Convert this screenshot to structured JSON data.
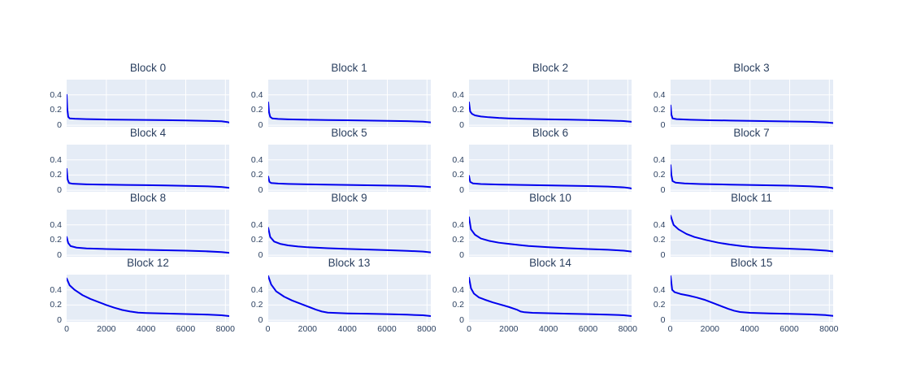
{
  "layout": {
    "figure_bg": "#ffffff",
    "plot_bg": "#e5ecf6",
    "grid_color": "#ffffff",
    "title_color": "#2a3f5f",
    "tick_color": "#2a3f5f",
    "line_color": "#0000ee",
    "xlim": [
      0,
      8192
    ],
    "ylim": [
      -0.02,
      0.6
    ],
    "xticks": [
      0,
      2000,
      4000,
      6000,
      8000
    ],
    "xtick_labels": [
      "0",
      "2000",
      "4000",
      "6000",
      "8000"
    ],
    "yticks": [
      0,
      0.2,
      0.4
    ],
    "ytick_labels": [
      "0",
      "0.2",
      "0.4"
    ],
    "grid_xticks": [
      2000,
      4000,
      6000,
      8000
    ],
    "rows": 4,
    "cols": 4
  },
  "chart_data": [
    {
      "type": "line",
      "title": "Block 0",
      "x": [
        0,
        30,
        80,
        150,
        400,
        1000,
        2000,
        3000,
        4000,
        5000,
        6000,
        7000,
        7800,
        8100,
        8192
      ],
      "y": [
        0.4,
        0.22,
        0.11,
        0.09,
        0.085,
        0.08,
        0.075,
        0.072,
        0.07,
        0.067,
        0.063,
        0.058,
        0.052,
        0.042,
        0.035
      ]
    },
    {
      "type": "line",
      "title": "Block 1",
      "x": [
        0,
        40,
        100,
        200,
        500,
        1000,
        2000,
        3000,
        4000,
        5000,
        6000,
        7000,
        7800,
        8192
      ],
      "y": [
        0.3,
        0.17,
        0.11,
        0.09,
        0.083,
        0.078,
        0.072,
        0.068,
        0.065,
        0.062,
        0.058,
        0.053,
        0.047,
        0.038
      ]
    },
    {
      "type": "line",
      "title": "Block 2",
      "x": [
        0,
        60,
        150,
        300,
        600,
        1000,
        1500,
        2000,
        3000,
        4000,
        5000,
        6000,
        7000,
        7800,
        8192
      ],
      "y": [
        0.3,
        0.18,
        0.15,
        0.13,
        0.115,
        0.105,
        0.096,
        0.09,
        0.083,
        0.078,
        0.073,
        0.068,
        0.062,
        0.055,
        0.045
      ]
    },
    {
      "type": "line",
      "title": "Block 3",
      "x": [
        0,
        40,
        100,
        300,
        1000,
        2000,
        3000,
        4000,
        5000,
        6000,
        7000,
        7800,
        8192
      ],
      "y": [
        0.26,
        0.14,
        0.09,
        0.08,
        0.072,
        0.066,
        0.062,
        0.058,
        0.054,
        0.05,
        0.045,
        0.038,
        0.03
      ]
    },
    {
      "type": "line",
      "title": "Block 4",
      "x": [
        0,
        50,
        120,
        300,
        1000,
        2000,
        3000,
        4000,
        5000,
        6000,
        7000,
        7800,
        8192
      ],
      "y": [
        0.28,
        0.14,
        0.095,
        0.085,
        0.078,
        0.073,
        0.07,
        0.067,
        0.063,
        0.058,
        0.052,
        0.043,
        0.032
      ]
    },
    {
      "type": "line",
      "title": "Block 5",
      "x": [
        0,
        60,
        150,
        500,
        1000,
        2000,
        3000,
        4000,
        5000,
        6000,
        7000,
        7800,
        8192
      ],
      "y": [
        0.18,
        0.11,
        0.095,
        0.088,
        0.083,
        0.078,
        0.074,
        0.07,
        0.066,
        0.062,
        0.057,
        0.05,
        0.042
      ]
    },
    {
      "type": "line",
      "title": "Block 6",
      "x": [
        0,
        60,
        200,
        600,
        1500,
        3000,
        4500,
        6000,
        7000,
        7800,
        8100,
        8192
      ],
      "y": [
        0.19,
        0.11,
        0.09,
        0.082,
        0.075,
        0.068,
        0.062,
        0.055,
        0.048,
        0.038,
        0.028,
        0.022
      ]
    },
    {
      "type": "line",
      "title": "Block 7",
      "x": [
        0,
        40,
        100,
        250,
        700,
        1500,
        3000,
        4500,
        6000,
        7000,
        7800,
        8100,
        8192
      ],
      "y": [
        0.33,
        0.2,
        0.12,
        0.1,
        0.09,
        0.082,
        0.074,
        0.067,
        0.06,
        0.052,
        0.042,
        0.032,
        0.026
      ]
    },
    {
      "type": "line",
      "title": "Block 8",
      "x": [
        0,
        80,
        200,
        500,
        1000,
        2000,
        3000,
        4500,
        6000,
        7000,
        7800,
        8192
      ],
      "y": [
        0.24,
        0.16,
        0.12,
        0.1,
        0.09,
        0.082,
        0.076,
        0.068,
        0.06,
        0.052,
        0.042,
        0.032
      ]
    },
    {
      "type": "line",
      "title": "Block 9",
      "x": [
        0,
        100,
        300,
        600,
        1000,
        1500,
        2000,
        3000,
        4000,
        5000,
        6000,
        7000,
        7800,
        8192
      ],
      "y": [
        0.36,
        0.24,
        0.18,
        0.15,
        0.13,
        0.115,
        0.105,
        0.092,
        0.083,
        0.075,
        0.067,
        0.058,
        0.048,
        0.038
      ]
    },
    {
      "type": "line",
      "title": "Block 10",
      "x": [
        0,
        100,
        300,
        600,
        1000,
        1500,
        2000,
        2500,
        3000,
        4000,
        5000,
        6000,
        7000,
        7800,
        8192
      ],
      "y": [
        0.5,
        0.34,
        0.27,
        0.22,
        0.19,
        0.165,
        0.15,
        0.135,
        0.122,
        0.105,
        0.092,
        0.082,
        0.072,
        0.06,
        0.048
      ]
    },
    {
      "type": "line",
      "title": "Block 11",
      "x": [
        0,
        150,
        400,
        800,
        1200,
        1800,
        2400,
        3000,
        3600,
        4200,
        5000,
        6000,
        7000,
        7800,
        8192
      ],
      "y": [
        0.52,
        0.4,
        0.34,
        0.28,
        0.24,
        0.2,
        0.165,
        0.14,
        0.12,
        0.105,
        0.095,
        0.085,
        0.075,
        0.062,
        0.05
      ]
    },
    {
      "type": "line",
      "title": "Block 12",
      "x": [
        0,
        150,
        400,
        800,
        1200,
        1600,
        2000,
        2400,
        2800,
        3200,
        3600,
        4000,
        5000,
        6000,
        7000,
        7800,
        8192
      ],
      "y": [
        0.55,
        0.46,
        0.4,
        0.33,
        0.28,
        0.24,
        0.2,
        0.165,
        0.135,
        0.115,
        0.1,
        0.095,
        0.088,
        0.082,
        0.075,
        0.065,
        0.055
      ]
    },
    {
      "type": "line",
      "title": "Block 13",
      "x": [
        0,
        150,
        400,
        800,
        1200,
        1600,
        2000,
        2400,
        2700,
        3000,
        3500,
        4000,
        5000,
        6000,
        7000,
        7800,
        8192
      ],
      "y": [
        0.58,
        0.47,
        0.38,
        0.31,
        0.26,
        0.22,
        0.18,
        0.14,
        0.115,
        0.1,
        0.095,
        0.09,
        0.085,
        0.08,
        0.073,
        0.065,
        0.055
      ]
    },
    {
      "type": "line",
      "title": "Block 14",
      "x": [
        0,
        100,
        250,
        500,
        800,
        1200,
        1600,
        2000,
        2400,
        2600,
        2800,
        3200,
        4000,
        5000,
        6000,
        7000,
        7800,
        8192
      ],
      "y": [
        0.56,
        0.42,
        0.35,
        0.3,
        0.27,
        0.235,
        0.205,
        0.175,
        0.14,
        0.115,
        0.105,
        0.098,
        0.092,
        0.086,
        0.08,
        0.074,
        0.066,
        0.055
      ]
    },
    {
      "type": "line",
      "title": "Block 15",
      "x": [
        0,
        80,
        200,
        500,
        900,
        1300,
        1700,
        2100,
        2500,
        2900,
        3200,
        3500,
        4000,
        5000,
        6000,
        7000,
        7800,
        8192
      ],
      "y": [
        0.58,
        0.4,
        0.37,
        0.345,
        0.325,
        0.3,
        0.27,
        0.23,
        0.19,
        0.15,
        0.125,
        0.108,
        0.098,
        0.09,
        0.084,
        0.078,
        0.068,
        0.058
      ]
    }
  ]
}
